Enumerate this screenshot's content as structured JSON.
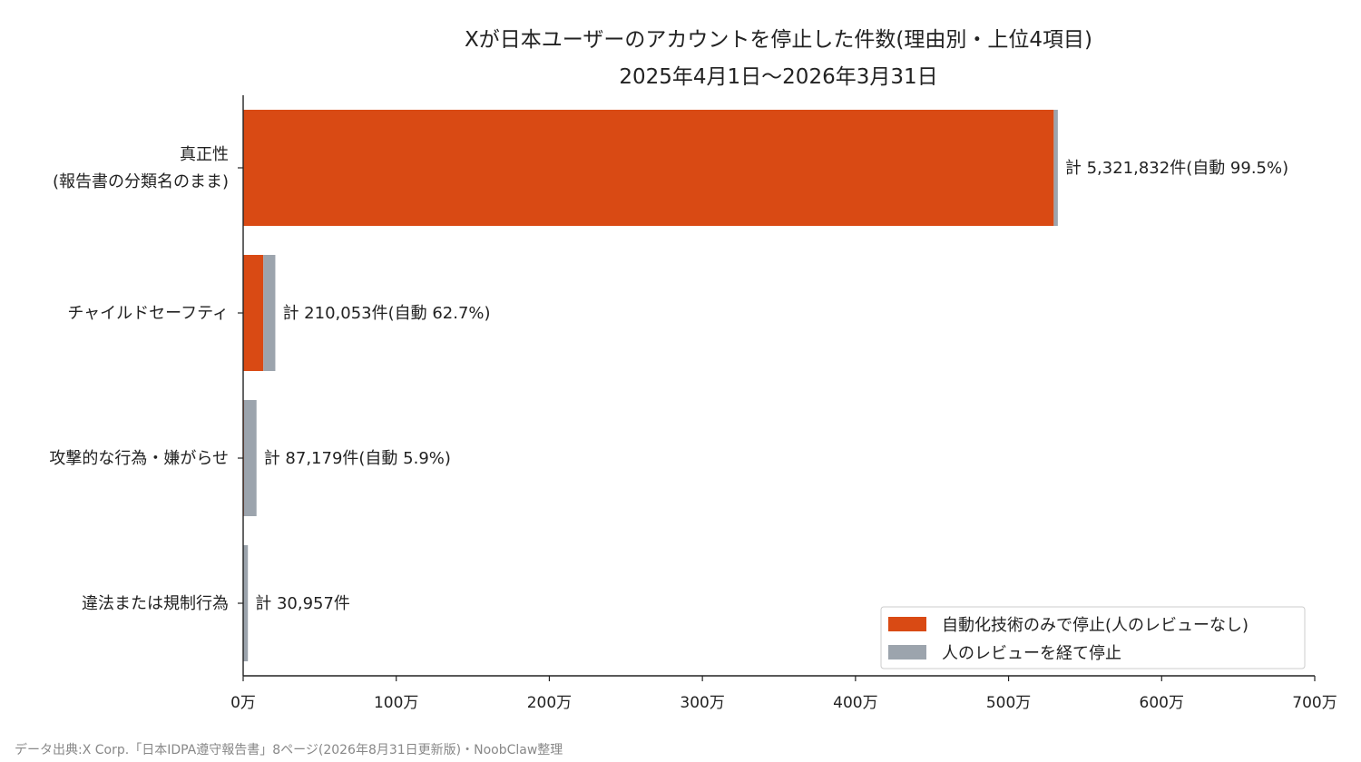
{
  "chart_data": {
    "type": "bar",
    "orientation": "horizontal",
    "stacked": true,
    "title": "Xが日本ユーザーのアカウントを停止した件数(理由別・上位4項目)",
    "subtitle": "2025年4月1日〜2026年3月31日",
    "categories": [
      [
        "真正性",
        "(報告書の分類名のまま)"
      ],
      [
        "チャイルドセーフティ"
      ],
      [
        "攻撃的な行為・嫌がらせ"
      ],
      [
        "違法または規制行為"
      ]
    ],
    "totals": [
      5321832,
      210053,
      87179,
      30957
    ],
    "series": [
      {
        "name": "自動化技術のみで停止(人のレビューなし)",
        "color": "#d94a14",
        "values": [
          5295223,
          131703,
          5144,
          0
        ]
      },
      {
        "name": "人のレビューを経て停止",
        "color": "#9ca4ad",
        "values": [
          26609,
          78350,
          82035,
          30957
        ]
      }
    ],
    "data_labels": [
      "計 5,321,832件(自動 99.5%)",
      "計 210,053件(自動 62.7%)",
      "計 87,179件(自動 5.9%)",
      "計 30,957件"
    ],
    "xlim": [
      0,
      7000000
    ],
    "x_ticks": [
      0,
      1000000,
      2000000,
      3000000,
      4000000,
      5000000,
      6000000,
      7000000
    ],
    "x_tick_labels": [
      "0万",
      "100万",
      "200万",
      "300万",
      "400万",
      "500万",
      "600万",
      "700万"
    ],
    "xlabel": "",
    "ylabel": "",
    "grid": false,
    "legend_position": "bottom-right",
    "source": "データ出典:X Corp.「日本IDPA遵守報告書」8ページ(2026年8月31日更新版)・NoobClaw整理"
  }
}
